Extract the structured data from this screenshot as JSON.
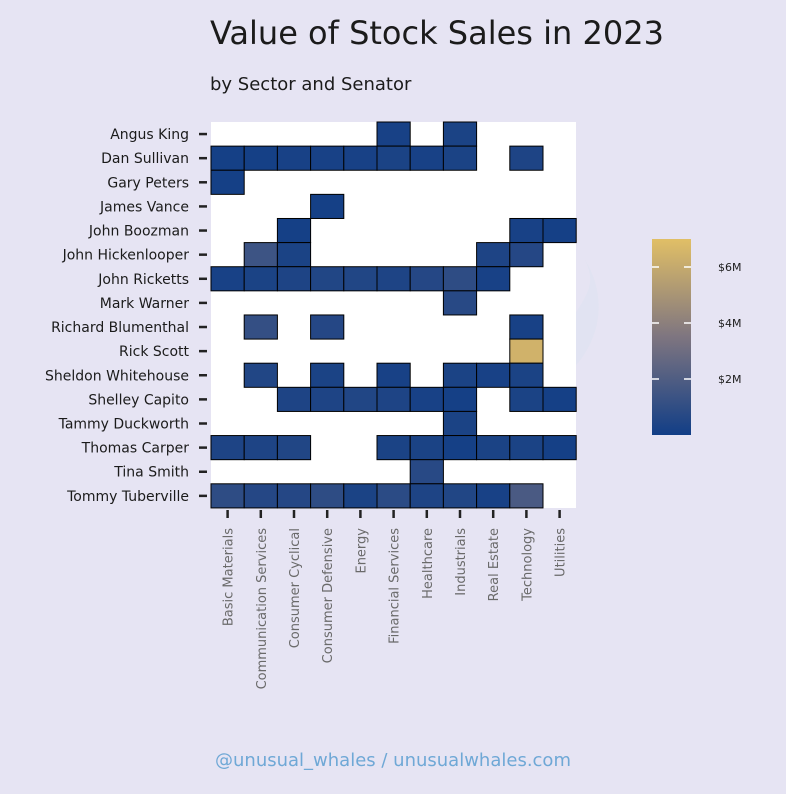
{
  "title": "Value of Stock Sales in 2023",
  "subtitle": "by Sector and Senator",
  "footer": "@unusual_whales / unusualwhales.com",
  "chart_data": {
    "type": "heatmap",
    "title": "Value of Stock Sales in 2023",
    "subtitle": "by Sector and Senator",
    "xlabel": "",
    "ylabel": "",
    "x_categories": [
      "Basic Materials",
      "Communication Services",
      "Consumer Cyclical",
      "Consumer Defensive",
      "Energy",
      "Financial Services",
      "Healthcare",
      "Industrials",
      "Real Estate",
      "Technology",
      "Utilities"
    ],
    "y_categories": [
      "Angus King",
      "Dan Sullivan",
      "Gary Peters",
      "James Vance",
      "John Boozman",
      "John Hickenlooper",
      "John Ricketts",
      "Mark Warner",
      "Richard Blumenthal",
      "Rick Scott",
      "Sheldon Whitehouse",
      "Shelley Capito",
      "Tammy Duckworth",
      "Thomas Carper",
      "Tina Smith",
      "Tommy Tuberville"
    ],
    "values": [
      [
        null,
        null,
        null,
        null,
        null,
        0.2,
        null,
        0.3,
        null,
        null,
        null
      ],
      [
        0.1,
        0.1,
        0.2,
        0.2,
        0.2,
        0.3,
        0.2,
        0.3,
        null,
        0.4,
        null
      ],
      [
        0.1,
        null,
        null,
        null,
        null,
        null,
        null,
        null,
        null,
        null,
        null
      ],
      [
        null,
        null,
        null,
        0.1,
        null,
        null,
        null,
        null,
        null,
        null,
        null
      ],
      [
        null,
        null,
        0.1,
        null,
        null,
        null,
        null,
        null,
        null,
        0.2,
        0.1
      ],
      [
        null,
        1.4,
        0.3,
        null,
        null,
        null,
        null,
        null,
        0.4,
        0.6,
        null
      ],
      [
        0.2,
        0.3,
        0.4,
        0.5,
        0.5,
        0.4,
        0.6,
        0.9,
        0.2,
        null,
        null
      ],
      [
        null,
        null,
        null,
        null,
        null,
        null,
        null,
        0.7,
        null,
        null,
        null
      ],
      [
        null,
        1.1,
        null,
        0.6,
        null,
        null,
        null,
        null,
        null,
        0.2,
        null
      ],
      [
        null,
        null,
        null,
        null,
        null,
        null,
        null,
        null,
        null,
        6.4,
        null
      ],
      [
        null,
        0.5,
        null,
        0.3,
        null,
        0.2,
        null,
        0.3,
        0.2,
        0.3,
        null
      ],
      [
        null,
        null,
        0.4,
        0.4,
        0.5,
        0.4,
        0.2,
        0.1,
        null,
        0.3,
        0.1
      ],
      [
        null,
        null,
        null,
        null,
        null,
        null,
        null,
        0.3,
        null,
        null,
        null
      ],
      [
        0.4,
        0.4,
        0.5,
        null,
        null,
        0.3,
        0.3,
        0.1,
        0.3,
        0.3,
        0.1
      ],
      [
        null,
        null,
        null,
        null,
        null,
        null,
        0.7,
        null,
        null,
        null,
        null
      ],
      [
        0.9,
        0.6,
        0.6,
        0.9,
        0.3,
        0.8,
        0.4,
        0.5,
        0.2,
        1.8,
        null
      ]
    ],
    "unit": "USD millions",
    "colorbar": {
      "min": 0,
      "max": 7,
      "ticks": [
        2,
        4,
        6
      ],
      "tick_labels": [
        "$2M",
        "$4M",
        "$6M"
      ],
      "colors": [
        "#123e86",
        "#7e7580",
        "#e1bf66"
      ]
    },
    "missing_color": "#ffffff",
    "grid": false,
    "legend": "right"
  }
}
